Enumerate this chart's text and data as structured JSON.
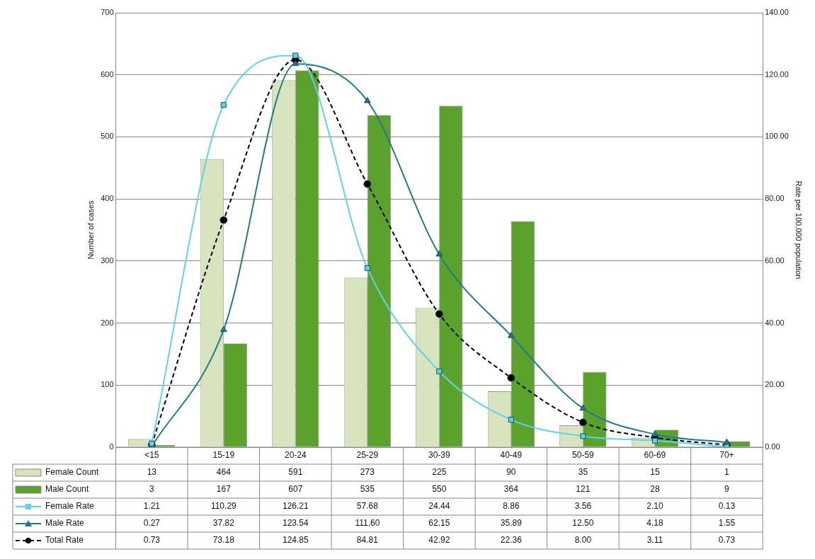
{
  "chart_data": {
    "type": "bar",
    "ylabel": "Number of cases",
    "y2label": "Rate per 100,000 population",
    "categories": [
      "<15",
      "15-19",
      "20-24",
      "25-29",
      "30-39",
      "40-49",
      "50-59",
      "60-69",
      "70+"
    ],
    "series": [
      {
        "name": "Female Count",
        "color": "#d7e4bd",
        "values": [
          13,
          464,
          591,
          273,
          225,
          90,
          35,
          15,
          1
        ],
        "value_labels": [
          "13",
          "464",
          "591",
          "273",
          "225",
          "90",
          "35",
          "15",
          "1"
        ]
      },
      {
        "name": "Male Count",
        "color": "#5ba22d",
        "values": [
          3,
          167,
          607,
          535,
          550,
          364,
          121,
          28,
          9
        ],
        "value_labels": [
          "3",
          "167",
          "607",
          "535",
          "550",
          "364",
          "121",
          "28",
          "9"
        ]
      },
      {
        "name": "Female Rate",
        "type": "line",
        "axis": "y2",
        "color": "#5fd3ec",
        "marker": "square",
        "line_style": "solid",
        "values": [
          1.21,
          110.29,
          126.21,
          57.68,
          24.44,
          8.86,
          3.56,
          2.1,
          0.13
        ],
        "value_labels": [
          "1.21",
          "110.29",
          "126.21",
          "57.68",
          "24.44",
          "8.86",
          "3.56",
          "2.10",
          "0.13"
        ]
      },
      {
        "name": "Male Rate",
        "type": "line",
        "axis": "y2",
        "color": "#1f7b8c",
        "marker": "triangle",
        "line_style": "solid",
        "values": [
          0.27,
          37.82,
          123.54,
          111.6,
          62.15,
          35.89,
          12.5,
          4.18,
          1.55
        ],
        "value_labels": [
          "0.27",
          "37.82",
          "123.54",
          "111.60",
          "62.15",
          "35.89",
          "12.50",
          "4.18",
          "1.55"
        ]
      },
      {
        "name": "Total Rate",
        "type": "line",
        "axis": "y2",
        "color": "#000000",
        "marker": "circle",
        "line_style": "dashed",
        "values": [
          0.73,
          73.18,
          124.85,
          84.81,
          42.92,
          22.36,
          8.0,
          3.11,
          0.73
        ],
        "value_labels": [
          "0.73",
          "73.18",
          "124.85",
          "84.81",
          "42.92",
          "22.36",
          "8.00",
          "3.11",
          "0.73"
        ]
      }
    ],
    "ylim": [
      0,
      700
    ],
    "yticks": [
      0,
      100,
      200,
      300,
      400,
      500,
      600,
      700
    ],
    "y2lim": [
      0,
      140
    ],
    "y2ticks": [
      {
        "value": 0,
        "label": "0.00"
      },
      {
        "value": 20,
        "label": "20.00"
      },
      {
        "value": 40,
        "label": "40.00"
      },
      {
        "value": 60,
        "label": "60.00"
      },
      {
        "value": 80,
        "label": "80.00"
      },
      {
        "value": 100,
        "label": "100.00"
      },
      {
        "value": 120,
        "label": "120.00"
      },
      {
        "value": 140,
        "label": "140.00"
      }
    ],
    "grid": "y",
    "legend": "bottom left"
  }
}
